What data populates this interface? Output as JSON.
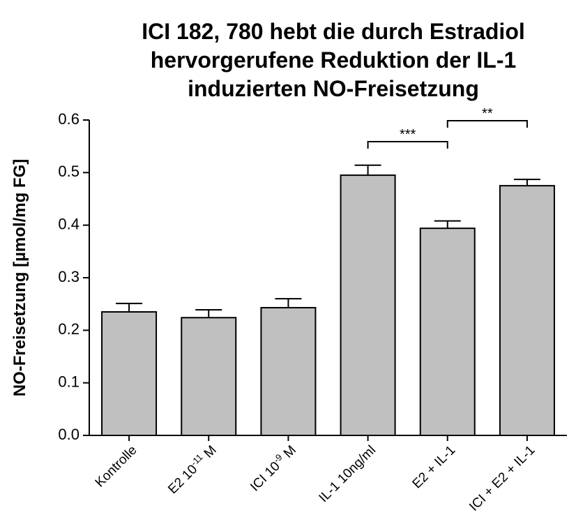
{
  "chart_data": {
    "type": "bar",
    "title": [
      "ICI 182, 780 hebt die durch Estradiol",
      "hervorgerufene Reduktion der IL-1",
      "induzierten NO-Freisetzung"
    ],
    "ylabel": "NO-Freisetzung [µmol/mg FG]",
    "categories": [
      [
        "Kontrolle"
      ],
      [
        "E2 10",
        "-11",
        " M"
      ],
      [
        "ICI 10",
        "-9",
        " M"
      ],
      [
        "IL-1 10ng/ml"
      ],
      [
        "E2 + IL-1"
      ],
      [
        "ICI + E2 + IL-1"
      ]
    ],
    "values": [
      0.235,
      0.224,
      0.243,
      0.495,
      0.394,
      0.475
    ],
    "errors": [
      0.016,
      0.015,
      0.017,
      0.019,
      0.014,
      0.012
    ],
    "color": "#c0c0c0",
    "ylim": [
      0,
      0.6
    ],
    "yticks": [
      {
        "value": 0,
        "label": "0.0"
      },
      0.1,
      0.2,
      0.3,
      0.4,
      0.5,
      0.6
    ],
    "annotations": [
      {
        "text": "***",
        "from": 3,
        "to": 4
      },
      {
        "text": "**",
        "from": 4,
        "to": 5
      }
    ]
  }
}
